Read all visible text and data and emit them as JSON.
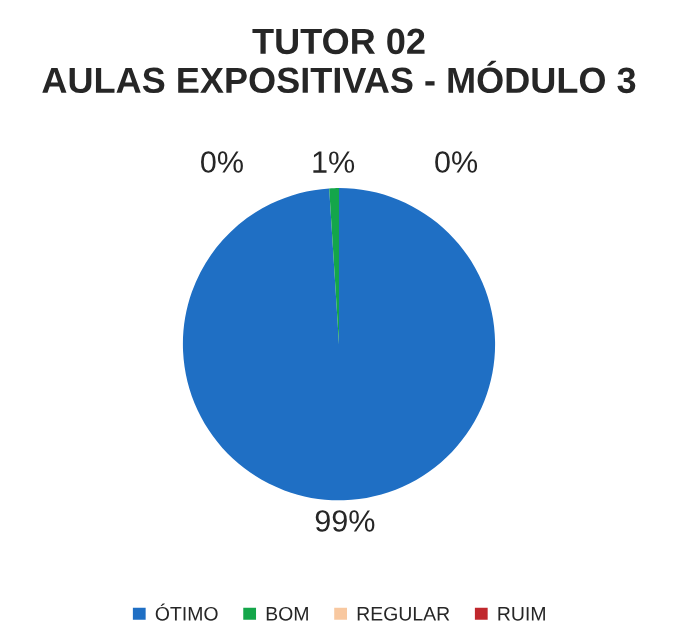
{
  "chart_data": {
    "type": "pie",
    "title": "TUTOR 02\nAULAS EXPOSITIVAS - MÓDULO 3",
    "categories": [
      "ÓTIMO",
      "BOM",
      "REGULAR",
      "RUIM"
    ],
    "values": [
      99,
      1,
      0,
      0
    ],
    "colors": [
      "#1f6fc4",
      "#14a64a",
      "#f8c8a0",
      "#c0282d"
    ],
    "value_labels": [
      "99%",
      "1%",
      "0%",
      "0%"
    ],
    "legend": "bottom"
  }
}
